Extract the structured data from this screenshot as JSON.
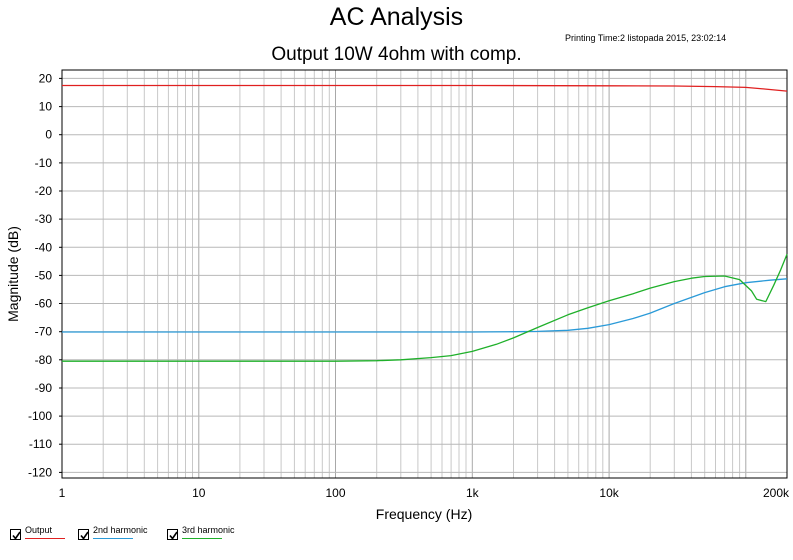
{
  "title": "AC Analysis",
  "subtitle": "Output 10W 4ohm with comp.",
  "printing_time": "Printing Time:2 listopada 2015, 23:02:14",
  "legend": [
    {
      "label": "Output",
      "color": "#e02020",
      "checked": true
    },
    {
      "label": "2nd harmonic",
      "color": "#2a9ad8",
      "checked": true
    },
    {
      "label": "3rd harmonic",
      "color": "#1fb02a",
      "checked": true
    }
  ],
  "chart_data": {
    "type": "line",
    "title": "Output 10W 4ohm with comp.",
    "xlabel": "Frequency (Hz)",
    "ylabel": "Magnitude (dB)",
    "x_scale": "log",
    "xlim": [
      1,
      200000
    ],
    "ylim": [
      -122,
      23
    ],
    "grid": true,
    "legend_position": "bottom-left",
    "x_ticks": [
      {
        "value": 1,
        "label": "1"
      },
      {
        "value": 10,
        "label": "10"
      },
      {
        "value": 100,
        "label": "100"
      },
      {
        "value": 1000,
        "label": "1k"
      },
      {
        "value": 10000,
        "label": "10k"
      },
      {
        "value": 200000,
        "label": "200k"
      }
    ],
    "y_ticks": [
      {
        "value": 20,
        "label": "20"
      },
      {
        "value": 10,
        "label": "10"
      },
      {
        "value": 0,
        "label": "0"
      },
      {
        "value": -10,
        "label": "-10"
      },
      {
        "value": -20,
        "label": "-20"
      },
      {
        "value": -30,
        "label": "-30"
      },
      {
        "value": -40,
        "label": "-40"
      },
      {
        "value": -50,
        "label": "-50"
      },
      {
        "value": -60,
        "label": "-60"
      },
      {
        "value": -70,
        "label": "-70"
      },
      {
        "value": -80,
        "label": "-80"
      },
      {
        "value": -90,
        "label": "-90"
      },
      {
        "value": -100,
        "label": "-100"
      },
      {
        "value": -110,
        "label": "-110"
      },
      {
        "value": -120,
        "label": "-120"
      }
    ],
    "series": [
      {
        "name": "Output",
        "color": "#e02020",
        "x": [
          1,
          10,
          100,
          1000,
          10000,
          30000,
          60000,
          100000,
          140000,
          200000
        ],
        "y": [
          17.5,
          17.5,
          17.5,
          17.5,
          17.4,
          17.3,
          17.1,
          16.8,
          16.2,
          15.5
        ]
      },
      {
        "name": "2nd harmonic",
        "color": "#2a9ad8",
        "x": [
          1,
          10,
          100,
          1000,
          2000,
          3000,
          5000,
          7000,
          10000,
          15000,
          20000,
          30000,
          50000,
          70000,
          100000,
          150000,
          200000
        ],
        "y": [
          -70.1,
          -70.1,
          -70.1,
          -70.1,
          -70,
          -69.9,
          -69.5,
          -68.8,
          -67.5,
          -65.3,
          -63.4,
          -60,
          -56.1,
          -54,
          -52.6,
          -51.7,
          -51.2
        ]
      },
      {
        "name": "3rd harmonic",
        "color": "#1fb02a",
        "x": [
          1,
          10,
          100,
          200,
          300,
          500,
          700,
          1000,
          1500,
          2000,
          3000,
          5000,
          7000,
          10000,
          15000,
          20000,
          30000,
          40000,
          50000,
          70000,
          90000,
          110000,
          120000,
          140000,
          160000,
          180000,
          200000
        ],
        "y": [
          -80.5,
          -80.5,
          -80.5,
          -80.3,
          -80,
          -79.2,
          -78.5,
          -77,
          -74.5,
          -72.2,
          -68.5,
          -64,
          -61.5,
          -59,
          -56.5,
          -54.5,
          -52.2,
          -51,
          -50.4,
          -50.2,
          -51.5,
          -55.5,
          -58.5,
          -59.3,
          -53.5,
          -48,
          -42.5
        ]
      }
    ]
  }
}
